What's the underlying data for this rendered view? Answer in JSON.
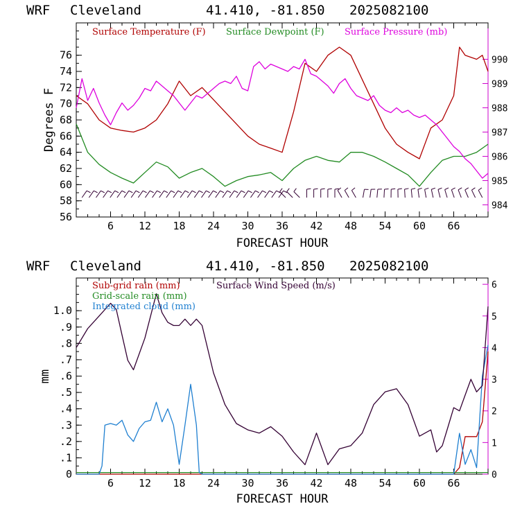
{
  "header": {
    "panel1": {
      "model": "WRF",
      "station": "Cleveland",
      "coords": "41.410, -81.850",
      "run": "2025082100"
    },
    "panel2": {
      "model": "WRF",
      "station": "Cleveland",
      "coords": "41.410, -81.850",
      "run": "2025082100"
    }
  },
  "colors": {
    "temperature": "#b00000",
    "dewpoint": "#228b22",
    "pressure": "#dd00dd",
    "wind_barbs": "#330033",
    "subgrid_rain": "#b00000",
    "gridscale_rain": "#228b22",
    "cloud": "#1e7fd0",
    "wind_speed": "#330033"
  },
  "chart_data": [
    {
      "type": "line",
      "panel": "top",
      "xlabel": "FORECAST HOUR",
      "ylabel": "Degrees F",
      "xlim": [
        0,
        72
      ],
      "ylim": [
        56,
        80
      ],
      "y2lim": [
        983.5,
        991.5
      ],
      "xticks": [
        "6",
        "12",
        "18",
        "24",
        "30",
        "36",
        "42",
        "48",
        "54",
        "60",
        "66"
      ],
      "yticks": [
        "56",
        "58",
        "60",
        "62",
        "64",
        "66",
        "68",
        "70",
        "72",
        "74",
        "76"
      ],
      "y2ticks": [
        "984",
        "985",
        "986",
        "987",
        "988",
        "989",
        "990"
      ],
      "series": [
        {
          "name": "Surface Temperature (F)",
          "axis": "left",
          "color_key": "temperature",
          "x": [
            0,
            2,
            4,
            6,
            8,
            10,
            12,
            14,
            16,
            18,
            20,
            22,
            24,
            26,
            28,
            30,
            32,
            34,
            36,
            38,
            40,
            42,
            44,
            46,
            48,
            50,
            52,
            54,
            56,
            58,
            60,
            62,
            64,
            66,
            67,
            68,
            70,
            71,
            72
          ],
          "y": [
            71,
            70,
            68,
            67,
            66.7,
            66.5,
            67,
            68,
            70,
            72.8,
            71,
            72,
            70.5,
            69,
            67.5,
            66,
            65,
            64.5,
            64,
            69,
            75,
            74,
            76,
            77,
            76,
            73,
            70,
            67,
            65,
            64,
            63.2,
            67,
            68,
            71,
            77,
            76,
            75.5,
            76,
            74
          ]
        },
        {
          "name": "Surface Dewpoint (F)",
          "axis": "left",
          "color_key": "dewpoint",
          "x": [
            0,
            2,
            4,
            6,
            8,
            10,
            12,
            14,
            16,
            18,
            20,
            22,
            24,
            26,
            28,
            30,
            32,
            34,
            36,
            38,
            40,
            42,
            44,
            46,
            48,
            50,
            52,
            54,
            56,
            58,
            60,
            62,
            64,
            66,
            68,
            70,
            72
          ],
          "y": [
            67.5,
            64,
            62.5,
            61.5,
            60.8,
            60.2,
            61.5,
            62.8,
            62.2,
            60.8,
            61.5,
            62,
            61,
            59.8,
            60.5,
            61,
            61.2,
            61.5,
            60.5,
            62,
            63,
            63.5,
            63,
            62.8,
            64,
            64,
            63.5,
            62.8,
            62,
            61.2,
            59.8,
            61.5,
            63,
            63.5,
            63.5,
            64,
            65
          ]
        },
        {
          "name": "Surface Pressure (mb)",
          "axis": "right",
          "color_key": "pressure",
          "x": [
            0,
            1,
            2,
            3,
            4,
            5,
            6,
            7,
            8,
            9,
            10,
            11,
            12,
            13,
            14,
            15,
            16,
            17,
            18,
            19,
            20,
            21,
            22,
            23,
            24,
            25,
            26,
            27,
            28,
            29,
            30,
            31,
            32,
            33,
            34,
            35,
            36,
            37,
            38,
            39,
            40,
            41,
            42,
            43,
            44,
            45,
            46,
            47,
            48,
            49,
            50,
            51,
            52,
            53,
            54,
            55,
            56,
            57,
            58,
            59,
            60,
            61,
            62,
            63,
            64,
            65,
            66,
            67,
            68,
            69,
            70,
            71,
            72
          ],
          "y": [
            988,
            989.2,
            988.3,
            988.8,
            988.2,
            987.7,
            987.3,
            987.8,
            988.2,
            987.9,
            988.1,
            988.4,
            988.8,
            988.7,
            989.1,
            988.9,
            988.7,
            988.5,
            988.2,
            987.9,
            988.2,
            988.5,
            988.4,
            988.6,
            988.8,
            989,
            989.1,
            989,
            989.3,
            988.8,
            988.7,
            989.7,
            989.9,
            989.6,
            989.8,
            989.7,
            989.6,
            989.5,
            989.7,
            989.6,
            990,
            989.4,
            989.3,
            989.1,
            988.9,
            988.6,
            989,
            989.2,
            988.8,
            988.5,
            988.4,
            988.3,
            988.5,
            988.1,
            987.9,
            987.8,
            988,
            987.8,
            987.9,
            987.7,
            987.6,
            987.7,
            987.5,
            987.3,
            987,
            986.7,
            986.4,
            986.2,
            985.9,
            985.7,
            985.4,
            985.1,
            985.3
          ]
        }
      ],
      "wind_barbs": {
        "y_level": 58.4,
        "count": 58
      }
    },
    {
      "type": "line",
      "panel": "bottom",
      "xlabel": "FORECAST HOUR",
      "ylabel": "mm",
      "xlim": [
        0,
        72
      ],
      "ylim": [
        0,
        1.2
      ],
      "y2lim": [
        0,
        6.2
      ],
      "xticks": [
        "6",
        "12",
        "18",
        "24",
        "30",
        "36",
        "42",
        "48",
        "54",
        "60",
        "66"
      ],
      "yticks": [
        "0",
        ".1",
        ".2",
        ".3",
        ".4",
        ".5",
        ".6",
        ".7",
        ".8",
        ".9",
        "1.0"
      ],
      "y2ticks": [
        "0",
        "1",
        "2",
        "3",
        "4",
        "5",
        "6"
      ],
      "series": [
        {
          "name": "Sub-grid rain (mm)",
          "axis": "left",
          "color_key": "subgrid_rain",
          "x": [
            0,
            60,
            64,
            66,
            67,
            68,
            70,
            71,
            72
          ],
          "y": [
            0,
            0,
            0,
            0,
            0.04,
            0.23,
            0.23,
            0.32,
            0.75
          ]
        },
        {
          "name": "Grid-scale rain (mm)",
          "axis": "left",
          "color_key": "gridscale_rain",
          "x": [
            0,
            72
          ],
          "y": [
            0.01,
            0.01
          ]
        },
        {
          "name": "Integrated cloud (mm)",
          "axis": "left",
          "color_key": "cloud",
          "x": [
            0,
            4,
            4.5,
            5,
            6,
            7,
            8,
            9,
            10,
            11,
            12,
            13,
            14,
            15,
            16,
            17,
            18,
            19,
            20,
            21,
            21.5,
            22,
            66,
            67,
            68,
            69,
            70,
            71,
            72
          ],
          "y": [
            0,
            0,
            0.05,
            0.3,
            0.31,
            0.3,
            0.33,
            0.24,
            0.2,
            0.28,
            0.32,
            0.33,
            0.44,
            0.32,
            0.4,
            0.3,
            0.06,
            0.3,
            0.55,
            0.3,
            0.01,
            0,
            0,
            0.25,
            0.06,
            0.15,
            0.04,
            0.6,
            0.79
          ]
        },
        {
          "name": "Surface Wind Speed (m/s)",
          "axis": "right",
          "color_key": "wind_speed",
          "x": [
            0,
            2,
            4,
            6,
            7,
            8,
            9,
            10,
            12,
            14,
            15,
            16,
            17,
            18,
            19,
            20,
            21,
            22,
            24,
            26,
            28,
            30,
            32,
            34,
            36,
            38,
            40,
            42,
            44,
            46,
            48,
            50,
            52,
            54,
            56,
            58,
            60,
            62,
            63,
            64,
            65,
            66,
            67,
            68,
            69,
            70,
            71,
            72
          ],
          "y": [
            4,
            4.6,
            5,
            5.4,
            5.2,
            4.4,
            3.6,
            3.3,
            4.3,
            5.7,
            5.1,
            4.8,
            4.7,
            4.7,
            4.9,
            4.7,
            4.9,
            4.7,
            3.2,
            2.2,
            1.6,
            1.4,
            1.3,
            1.5,
            1.2,
            0.7,
            0.3,
            1.3,
            0.3,
            0.8,
            0.9,
            1.3,
            2.2,
            2.6,
            2.7,
            2.2,
            1.2,
            1.4,
            0.7,
            0.9,
            1.5,
            2.1,
            2,
            2.5,
            3,
            2.6,
            2.8,
            5.3
          ]
        }
      ]
    }
  ]
}
